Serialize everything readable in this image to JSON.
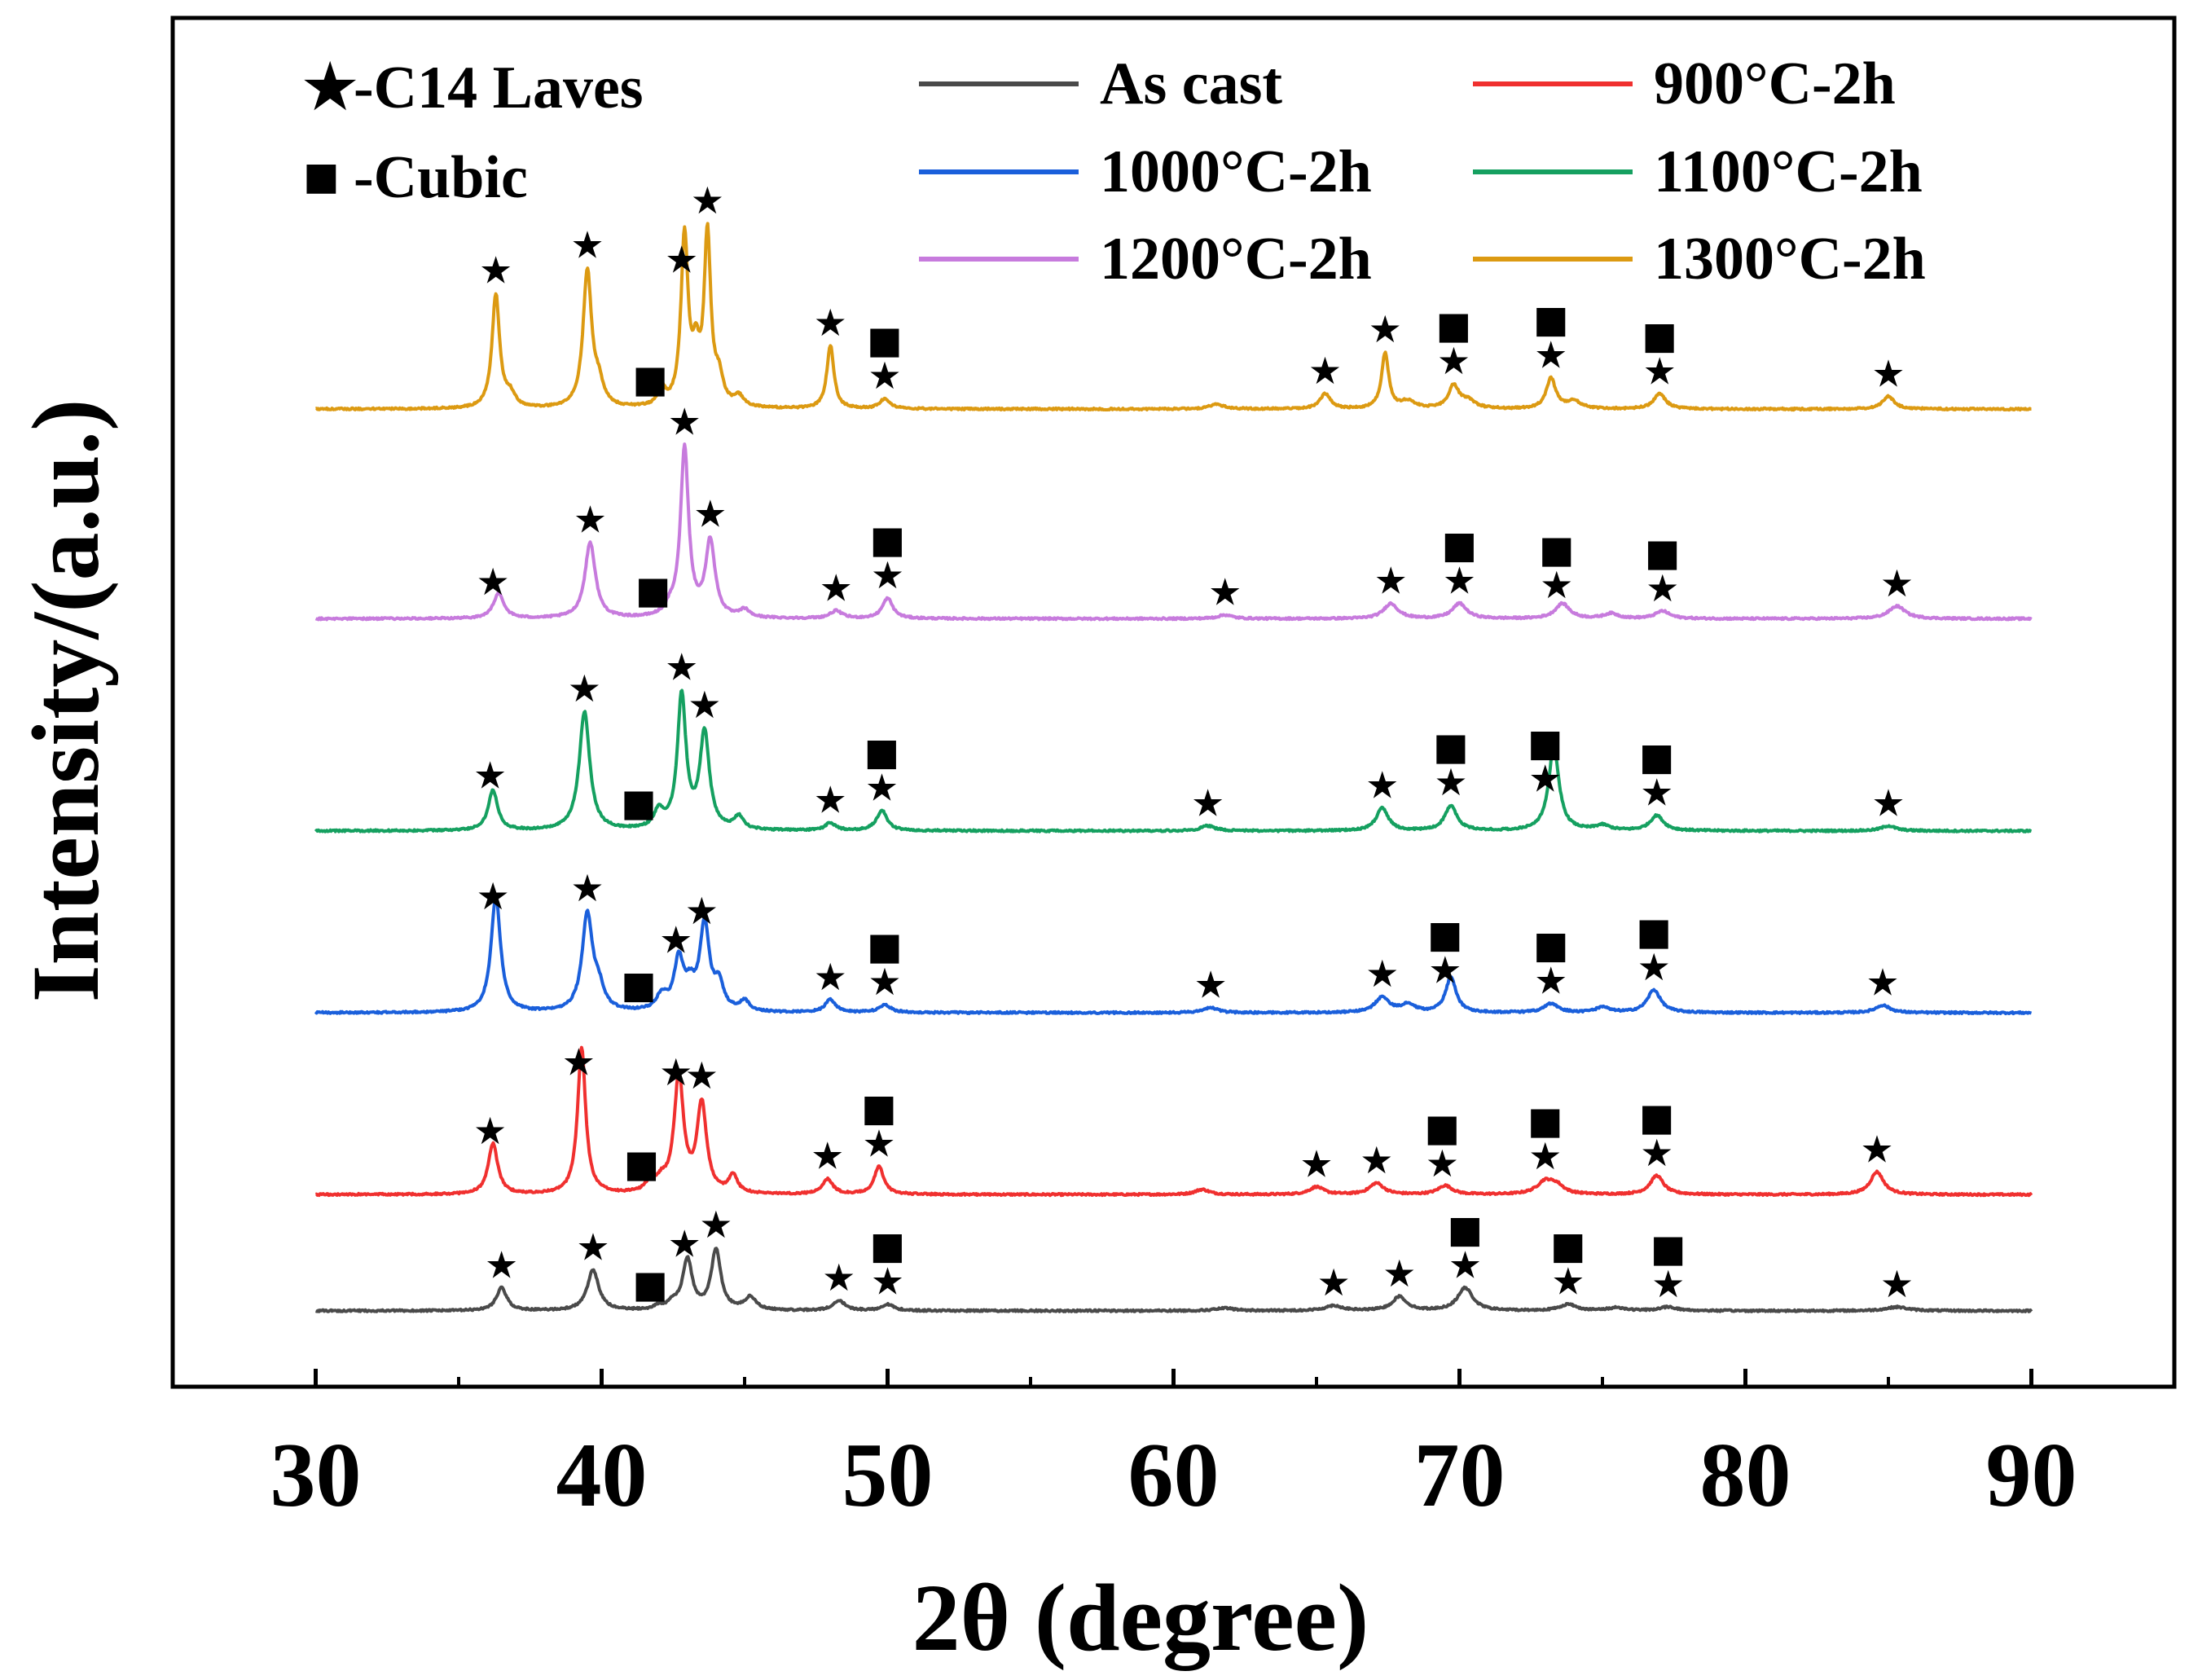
{
  "chart_data": {
    "type": "line",
    "title": "",
    "xlabel": "2θ (degree)",
    "ylabel": "Intensity/(a.u.)",
    "xlim": [
      25,
      95
    ],
    "xticks": [
      30,
      40,
      50,
      60,
      70,
      80,
      90
    ],
    "xtick_labels": [
      "30",
      "40",
      "50",
      "60",
      "70",
      "80",
      "90"
    ],
    "x_minor_ticks": [
      35,
      45,
      55,
      65,
      75,
      85
    ],
    "y_ticks_shown": false,
    "legend": {
      "placement": "top",
      "phase_markers": [
        {
          "symbol": "★",
          "label": "-C14 Laves"
        },
        {
          "symbol": "■",
          "label": "-Cubic"
        }
      ]
    },
    "series": [
      {
        "name": "As cast",
        "color": "#4a4a4a",
        "offset": 0,
        "baseline": 1.0,
        "noise": 0.35,
        "peaks": [
          [
            36.5,
            9,
            0.22
          ],
          [
            39.7,
            16,
            0.24
          ],
          [
            42.0,
            1.5,
            0.2
          ],
          [
            42.5,
            2.5,
            0.2
          ],
          [
            43.0,
            20,
            0.2
          ],
          [
            44.0,
            24,
            0.2
          ],
          [
            45.2,
            5,
            0.25
          ],
          [
            48.3,
            4,
            0.25
          ],
          [
            50.0,
            2.5,
            0.25
          ],
          [
            61.8,
            1.0,
            0.4
          ],
          [
            65.6,
            2.0,
            0.35
          ],
          [
            67.9,
            5.5,
            0.3
          ],
          [
            70.2,
            9,
            0.32
          ],
          [
            73.8,
            2.5,
            0.35
          ],
          [
            75.5,
            1.2,
            0.35
          ],
          [
            77.3,
            1.5,
            0.35
          ],
          [
            85.3,
            1.5,
            0.45
          ]
        ],
        "markers": [
          {
            "x": 36.5,
            "symbols": [
              "★"
            ]
          },
          {
            "x": 39.7,
            "symbols": [
              "★"
            ]
          },
          {
            "x": 41.7,
            "symbols": [
              "■"
            ]
          },
          {
            "x": 42.9,
            "symbols": [
              "★"
            ]
          },
          {
            "x": 44.0,
            "symbols": [
              "★"
            ]
          },
          {
            "x": 48.3,
            "symbols": [
              "★"
            ]
          },
          {
            "x": 50.0,
            "symbols": [
              "■",
              "★"
            ]
          },
          {
            "x": 65.6,
            "symbols": [
              "★"
            ]
          },
          {
            "x": 67.9,
            "symbols": [
              "★"
            ]
          },
          {
            "x": 70.2,
            "symbols": [
              "■",
              "★"
            ]
          },
          {
            "x": 73.8,
            "symbols": [
              "■",
              "★"
            ]
          },
          {
            "x": 77.3,
            "symbols": [
              "■",
              "★"
            ]
          },
          {
            "x": 85.3,
            "symbols": [
              "★"
            ]
          }
        ]
      },
      {
        "name": "900°C-2h",
        "color": "#f0302f",
        "offset": 46,
        "baseline": 1.0,
        "noise": 0.35,
        "peaks": [
          [
            36.2,
            20,
            0.2
          ],
          [
            39.3,
            58,
            0.17
          ],
          [
            41.7,
            4,
            0.2
          ],
          [
            42.1,
            4,
            0.2
          ],
          [
            42.7,
            46,
            0.2
          ],
          [
            43.5,
            35,
            0.2
          ],
          [
            44.6,
            7,
            0.18
          ],
          [
            47.9,
            6,
            0.22
          ],
          [
            49.7,
            11,
            0.2
          ],
          [
            61.0,
            2,
            0.3
          ],
          [
            65.0,
            3,
            0.3
          ],
          [
            67.1,
            4.5,
            0.3
          ],
          [
            69.5,
            3.5,
            0.3
          ],
          [
            73.0,
            5,
            0.35
          ],
          [
            73.4,
            3,
            0.3
          ],
          [
            76.9,
            7.5,
            0.28
          ],
          [
            84.6,
            9,
            0.28
          ]
        ],
        "markers": [
          {
            "x": 36.1,
            "symbols": [
              "★"
            ]
          },
          {
            "x": 39.2,
            "symbols": [
              "★"
            ]
          },
          {
            "x": 41.4,
            "symbols": [
              "■"
            ]
          },
          {
            "x": 42.6,
            "symbols": [
              "★"
            ]
          },
          {
            "x": 43.5,
            "symbols": [
              "★"
            ]
          },
          {
            "x": 47.9,
            "symbols": [
              "★"
            ]
          },
          {
            "x": 49.7,
            "symbols": [
              "■",
              "★"
            ]
          },
          {
            "x": 65.0,
            "symbols": [
              "★"
            ]
          },
          {
            "x": 67.1,
            "symbols": [
              "★"
            ]
          },
          {
            "x": 69.4,
            "symbols": [
              "■",
              "★"
            ]
          },
          {
            "x": 73.0,
            "symbols": [
              "■",
              "★"
            ]
          },
          {
            "x": 76.9,
            "symbols": [
              "■",
              "★"
            ]
          },
          {
            "x": 84.6,
            "symbols": [
              "★"
            ]
          }
        ]
      },
      {
        "name": "1000°C-2h",
        "color": "#1a5fdb",
        "offset": 118,
        "baseline": 1.0,
        "noise": 0.35,
        "peaks": [
          [
            36.3,
            46,
            0.2
          ],
          [
            39.5,
            38,
            0.22
          ],
          [
            39.9,
            8,
            0.22
          ],
          [
            42.1,
            6,
            0.22
          ],
          [
            42.7,
            20,
            0.2
          ],
          [
            43.1,
            8,
            0.2
          ],
          [
            43.6,
            34,
            0.2
          ],
          [
            44.1,
            10,
            0.2
          ],
          [
            45.0,
            4,
            0.2
          ],
          [
            48.0,
            5,
            0.22
          ],
          [
            49.9,
            3,
            0.25
          ],
          [
            61.3,
            2,
            0.3
          ],
          [
            67.3,
            6,
            0.3
          ],
          [
            68.2,
            3,
            0.3
          ],
          [
            69.7,
            14,
            0.22
          ],
          [
            73.2,
            3.5,
            0.3
          ],
          [
            75.0,
            2,
            0.3
          ],
          [
            76.8,
            9,
            0.28
          ],
          [
            84.8,
            3,
            0.3
          ]
        ],
        "markers": [
          {
            "x": 36.2,
            "symbols": [
              "★"
            ]
          },
          {
            "x": 39.5,
            "symbols": [
              "★"
            ]
          },
          {
            "x": 41.3,
            "symbols": [
              "■"
            ]
          },
          {
            "x": 42.6,
            "symbols": [
              "★"
            ]
          },
          {
            "x": 43.5,
            "symbols": [
              "★"
            ]
          },
          {
            "x": 48.0,
            "symbols": [
              "★"
            ]
          },
          {
            "x": 49.9,
            "symbols": [
              "■",
              "★"
            ]
          },
          {
            "x": 61.3,
            "symbols": [
              "★"
            ]
          },
          {
            "x": 67.3,
            "symbols": [
              "★"
            ]
          },
          {
            "x": 69.5,
            "symbols": [
              "■",
              "★"
            ]
          },
          {
            "x": 73.2,
            "symbols": [
              "■",
              "★"
            ]
          },
          {
            "x": 76.8,
            "symbols": [
              "■",
              "★"
            ]
          },
          {
            "x": 84.8,
            "symbols": [
              "★"
            ]
          }
        ]
      },
      {
        "name": "1100°C-2h",
        "color": "#15a060",
        "offset": 190,
        "baseline": 1.0,
        "noise": 0.35,
        "peaks": [
          [
            36.2,
            16,
            0.2
          ],
          [
            39.4,
            47,
            0.22
          ],
          [
            42.0,
            7,
            0.2
          ],
          [
            42.8,
            53,
            0.18
          ],
          [
            43.6,
            38,
            0.2
          ],
          [
            44.8,
            5,
            0.2
          ],
          [
            48.0,
            3,
            0.22
          ],
          [
            49.8,
            8,
            0.22
          ],
          [
            61.2,
            2,
            0.3
          ],
          [
            67.3,
            9,
            0.25
          ],
          [
            69.7,
            10,
            0.25
          ],
          [
            73.3,
            33,
            0.22
          ],
          [
            75.0,
            2,
            0.3
          ],
          [
            76.9,
            6,
            0.28
          ],
          [
            85.0,
            2,
            0.3
          ]
        ],
        "markers": [
          {
            "x": 36.1,
            "symbols": [
              "★"
            ]
          },
          {
            "x": 39.4,
            "symbols": [
              "★"
            ]
          },
          {
            "x": 41.3,
            "symbols": [
              "■"
            ]
          },
          {
            "x": 42.8,
            "symbols": [
              "★"
            ]
          },
          {
            "x": 43.6,
            "symbols": [
              "★"
            ]
          },
          {
            "x": 48.0,
            "symbols": [
              "★"
            ]
          },
          {
            "x": 49.8,
            "symbols": [
              "■",
              "★"
            ]
          },
          {
            "x": 61.2,
            "symbols": [
              "★"
            ]
          },
          {
            "x": 67.3,
            "symbols": [
              "★"
            ]
          },
          {
            "x": 69.7,
            "symbols": [
              "■",
              "★"
            ]
          },
          {
            "x": 73.0,
            "symbols": [
              "■",
              "★"
            ]
          },
          {
            "x": 76.9,
            "symbols": [
              "■",
              "★"
            ]
          },
          {
            "x": 85.0,
            "symbols": [
              "★"
            ]
          }
        ]
      },
      {
        "name": "1200°C-2h",
        "color": "#c77bdd",
        "offset": 274,
        "baseline": 1.0,
        "noise": 0.35,
        "peaks": [
          [
            36.4,
            10,
            0.22
          ],
          [
            39.6,
            30,
            0.22
          ],
          [
            42.4,
            3,
            0.2
          ],
          [
            42.9,
            67,
            0.17
          ],
          [
            43.8,
            30,
            0.2
          ],
          [
            45.0,
            3,
            0.2
          ],
          [
            48.2,
            3,
            0.25
          ],
          [
            50.0,
            8,
            0.22
          ],
          [
            61.8,
            1.5,
            0.3
          ],
          [
            67.6,
            6,
            0.3
          ],
          [
            70.0,
            6,
            0.3
          ],
          [
            73.6,
            6,
            0.3
          ],
          [
            75.3,
            2,
            0.3
          ],
          [
            77.1,
            3,
            0.3
          ],
          [
            85.3,
            5,
            0.35
          ]
        ],
        "markers": [
          {
            "x": 36.2,
            "symbols": [
              "★"
            ]
          },
          {
            "x": 39.6,
            "symbols": [
              "★"
            ]
          },
          {
            "x": 41.8,
            "symbols": [
              "■"
            ]
          },
          {
            "x": 42.9,
            "symbols": [
              "★"
            ]
          },
          {
            "x": 43.8,
            "symbols": [
              "★"
            ]
          },
          {
            "x": 48.2,
            "symbols": [
              "★"
            ]
          },
          {
            "x": 50.0,
            "symbols": [
              "■",
              "★"
            ]
          },
          {
            "x": 61.8,
            "symbols": [
              "★"
            ]
          },
          {
            "x": 67.6,
            "symbols": [
              "★"
            ]
          },
          {
            "x": 70.0,
            "symbols": [
              "■",
              "★"
            ]
          },
          {
            "x": 73.4,
            "symbols": [
              "■",
              "★"
            ]
          },
          {
            "x": 77.1,
            "symbols": [
              "■",
              "★"
            ]
          },
          {
            "x": 85.3,
            "symbols": [
              "★"
            ]
          }
        ]
      },
      {
        "name": "1300°C-2h",
        "color": "#dc9a12",
        "offset": 357,
        "baseline": 1.0,
        "noise": 0.35,
        "peaks": [
          [
            36.3,
            45,
            0.16
          ],
          [
            36.8,
            5,
            0.2
          ],
          [
            39.5,
            54,
            0.18
          ],
          [
            39.9,
            8,
            0.2
          ],
          [
            42.1,
            7,
            0.15
          ],
          [
            42.9,
            67,
            0.15
          ],
          [
            43.3,
            18,
            0.15
          ],
          [
            43.7,
            67,
            0.14
          ],
          [
            44.1,
            10,
            0.18
          ],
          [
            44.8,
            4,
            0.2
          ],
          [
            48.0,
            25,
            0.15
          ],
          [
            49.9,
            4,
            0.2
          ],
          [
            61.5,
            2,
            0.3
          ],
          [
            65.3,
            6,
            0.22
          ],
          [
            67.4,
            22,
            0.15
          ],
          [
            68.2,
            3,
            0.3
          ],
          [
            69.8,
            9,
            0.22
          ],
          [
            70.3,
            3,
            0.3
          ],
          [
            73.2,
            12,
            0.2
          ],
          [
            74.0,
            3,
            0.3
          ],
          [
            77.0,
            6,
            0.25
          ],
          [
            85.0,
            5,
            0.25
          ]
        ],
        "markers": [
          {
            "x": 36.3,
            "symbols": [
              "★"
            ]
          },
          {
            "x": 39.5,
            "symbols": [
              "★"
            ]
          },
          {
            "x": 41.7,
            "symbols": [
              "■"
            ]
          },
          {
            "x": 42.8,
            "symbols": [
              "★"
            ]
          },
          {
            "x": 43.7,
            "symbols": [
              "★"
            ]
          },
          {
            "x": 48.0,
            "symbols": [
              "★"
            ]
          },
          {
            "x": 49.9,
            "symbols": [
              "■",
              "★"
            ]
          },
          {
            "x": 65.3,
            "symbols": [
              "★"
            ]
          },
          {
            "x": 67.4,
            "symbols": [
              "★"
            ]
          },
          {
            "x": 69.8,
            "symbols": [
              "■",
              "★"
            ]
          },
          {
            "x": 73.2,
            "symbols": [
              "■",
              "★"
            ]
          },
          {
            "x": 77.0,
            "symbols": [
              "■",
              "★"
            ]
          },
          {
            "x": 85.0,
            "symbols": [
              "★"
            ]
          }
        ]
      }
    ]
  }
}
